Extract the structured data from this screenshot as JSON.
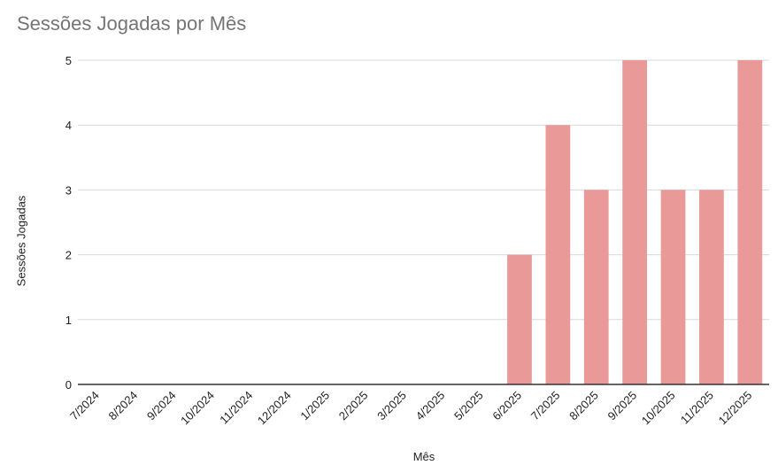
{
  "chart_data": {
    "type": "bar",
    "title": "Sessões Jogadas por Mês",
    "xlabel": "Mês",
    "ylabel": "Sessões Jogadas",
    "categories": [
      "7/2024",
      "8/2024",
      "9/2024",
      "10/2024",
      "11/2024",
      "12/2024",
      "1/2025",
      "2/2025",
      "3/2025",
      "4/2025",
      "5/2025",
      "6/2025",
      "7/2025",
      "8/2025",
      "9/2025",
      "10/2025",
      "11/2025",
      "12/2025"
    ],
    "values": [
      0,
      0,
      0,
      0,
      0,
      0,
      0,
      0,
      0,
      0,
      0,
      2,
      4,
      3,
      5,
      3,
      3,
      5
    ],
    "ylim": [
      0,
      5
    ],
    "yticks": [
      0,
      1,
      2,
      3,
      4,
      5
    ],
    "grid": true,
    "colors": {
      "bar": "#ea9999",
      "grid": "#d9d9d9",
      "axis": "#333333"
    }
  }
}
